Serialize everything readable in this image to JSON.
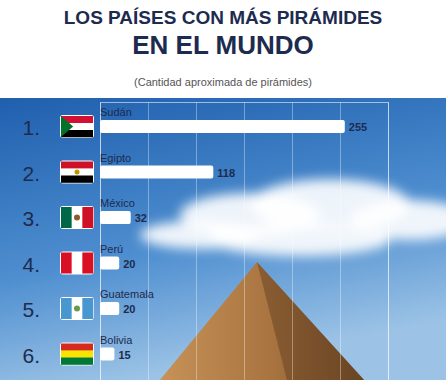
{
  "chart_data": {
    "type": "bar",
    "orientation": "horizontal",
    "title": "LOS PAÍSES CON MÁS PIRÁMIDES\nEN EL MUNDO",
    "subtitle": "(Cantidad aproximada de pirámides)",
    "categories": [
      "Sudán",
      "Egipto",
      "México",
      "Perú",
      "Guatemala",
      "Bolivia"
    ],
    "rank_labels": [
      "1.",
      "2.",
      "3.",
      "4.",
      "5.",
      "6."
    ],
    "values": [
      255,
      118,
      32,
      20,
      20,
      15
    ],
    "color": "#ffffff",
    "xlim": [
      0,
      300
    ],
    "xticks": [
      0,
      50,
      100,
      150,
      200,
      250,
      300
    ],
    "grid": true,
    "data_labels": true,
    "tick_labels": "y"
  }
}
